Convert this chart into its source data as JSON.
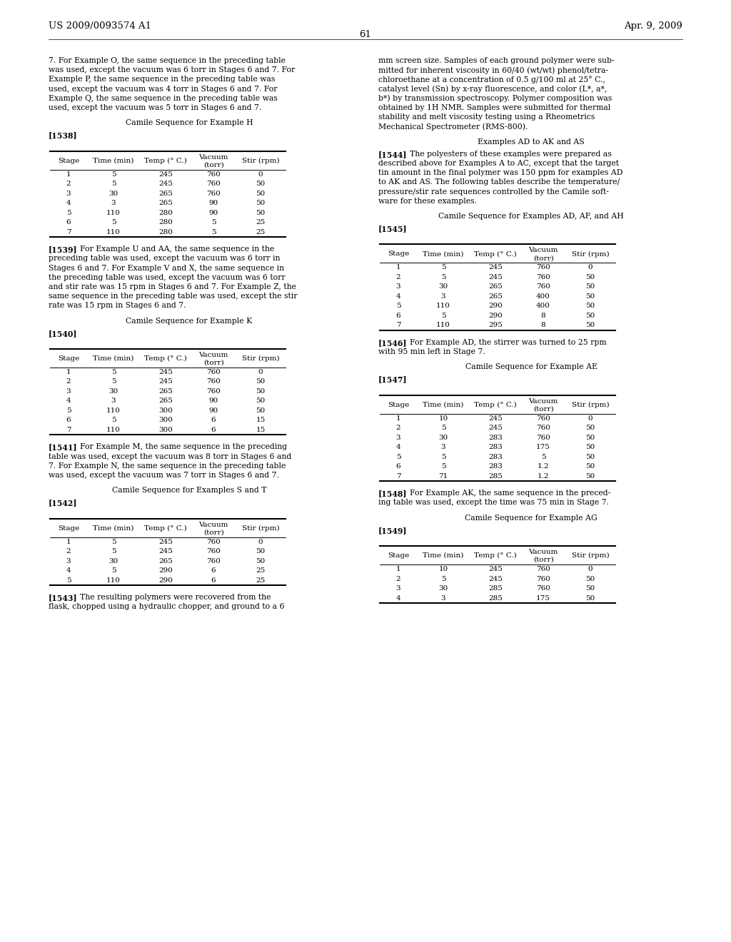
{
  "header_left": "US 2009/0093574 A1",
  "header_right": "Apr. 9, 2009",
  "page_number": "61",
  "bg_color": "#ffffff",
  "left_col": {
    "paragraphs": [
      {
        "type": "body",
        "text": "7. For Example O, the same sequence in the preceding table\nwas used, except the vacuum was 6 torr in Stages 6 and 7. For\nExample P, the same sequence in the preceding table was\nused, except the vacuum was 4 torr in Stages 6 and 7. For\nExample Q, the same sequence in the preceding table was\nused, except the vacuum was 5 torr in Stages 6 and 7."
      },
      {
        "type": "center",
        "text": "Camile Sequence for Example H"
      },
      {
        "type": "bold_bracket",
        "text": "[1538]"
      },
      {
        "type": "table",
        "headers": [
          "Stage",
          "Time (min)",
          "Temp (° C.)",
          "Vacuum\n(torr)",
          "Stir (rpm)"
        ],
        "rows": [
          [
            "1",
            "5",
            "245",
            "760",
            "0"
          ],
          [
            "2",
            "5",
            "245",
            "760",
            "50"
          ],
          [
            "3",
            "30",
            "265",
            "760",
            "50"
          ],
          [
            "4",
            "3",
            "265",
            "90",
            "50"
          ],
          [
            "5",
            "110",
            "280",
            "90",
            "50"
          ],
          [
            "6",
            "5",
            "280",
            "5",
            "25"
          ],
          [
            "7",
            "110",
            "280",
            "5",
            "25"
          ]
        ]
      },
      {
        "type": "body_bracket",
        "label": "[1539]",
        "text": "For Example U and AA, the same sequence in the\npreceding table was used, except the vacuum was 6 torr in\nStages 6 and 7. For Example V and X, the same sequence in\nthe preceding table was used, except the vacuum was 6 torr\nand stir rate was 15 rpm in Stages 6 and 7. For Example Z, the\nsame sequence in the preceding table was used, except the stir\nrate was 15 rpm in Stages 6 and 7."
      },
      {
        "type": "center",
        "text": "Camile Sequence for Example K"
      },
      {
        "type": "bold_bracket",
        "text": "[1540]"
      },
      {
        "type": "table",
        "headers": [
          "Stage",
          "Time (min)",
          "Temp (° C.)",
          "Vacuum\n(torr)",
          "Stir (rpm)"
        ],
        "rows": [
          [
            "1",
            "5",
            "245",
            "760",
            "0"
          ],
          [
            "2",
            "5",
            "245",
            "760",
            "50"
          ],
          [
            "3",
            "30",
            "265",
            "760",
            "50"
          ],
          [
            "4",
            "3",
            "265",
            "90",
            "50"
          ],
          [
            "5",
            "110",
            "300",
            "90",
            "50"
          ],
          [
            "6",
            "5",
            "300",
            "6",
            "15"
          ],
          [
            "7",
            "110",
            "300",
            "6",
            "15"
          ]
        ]
      },
      {
        "type": "body_bracket",
        "label": "[1541]",
        "text": "For Example M, the same sequence in the preceding\ntable was used, except the vacuum was 8 torr in Stages 6 and\n7. For Example N, the same sequence in the preceding table\nwas used, except the vacuum was 7 torr in Stages 6 and 7."
      },
      {
        "type": "center",
        "text": "Camile Sequence for Examples S and T"
      },
      {
        "type": "bold_bracket",
        "text": "[1542]"
      },
      {
        "type": "table",
        "headers": [
          "Stage",
          "Time (min)",
          "Temp (° C.)",
          "Vacuum\n(torr)",
          "Stir (rpm)"
        ],
        "rows": [
          [
            "1",
            "5",
            "245",
            "760",
            "0"
          ],
          [
            "2",
            "5",
            "245",
            "760",
            "50"
          ],
          [
            "3",
            "30",
            "265",
            "760",
            "50"
          ],
          [
            "4",
            "5",
            "290",
            "6",
            "25"
          ],
          [
            "5",
            "110",
            "290",
            "6",
            "25"
          ]
        ]
      },
      {
        "type": "body_bracket",
        "label": "[1543]",
        "text": "The resulting polymers were recovered from the\nflask, chopped using a hydraulic chopper, and ground to a 6"
      }
    ]
  },
  "right_col": {
    "paragraphs": [
      {
        "type": "body",
        "text": "mm screen size. Samples of each ground polymer were sub-\nmitted for inherent viscosity in 60/40 (wt/wt) phenol/tetra-\nchloroethane at a concentration of 0.5 g/100 ml at 25° C.,\ncatalyst level (Sn) by x-ray fluorescence, and color (L*, a*,\nb*) by transmission spectroscopy. Polymer composition was\nobtained by 1H NMR. Samples were submitted for thermal\nstability and melt viscosity testing using a Rheometrics\nMechanical Spectrometer (RMS-800)."
      },
      {
        "type": "center",
        "text": "Examples AD to AK and AS"
      },
      {
        "type": "body_bracket",
        "label": "[1544]",
        "text": "The polyesters of these examples were prepared as\ndescribed above for Examples A to AC, except that the target\ntin amount in the final polymer was 150 ppm for examples AD\nto AK and AS. The following tables describe the temperature/\npressure/stir rate sequences controlled by the Camile soft-\nware for these examples."
      },
      {
        "type": "center",
        "text": "Camile Sequence for Examples AD, AF, and AH"
      },
      {
        "type": "bold_bracket",
        "text": "[1545]"
      },
      {
        "type": "table",
        "headers": [
          "Stage",
          "Time (min)",
          "Temp (° C.)",
          "Vacuum\n(torr)",
          "Stir (rpm)"
        ],
        "rows": [
          [
            "1",
            "5",
            "245",
            "760",
            "0"
          ],
          [
            "2",
            "5",
            "245",
            "760",
            "50"
          ],
          [
            "3",
            "30",
            "265",
            "760",
            "50"
          ],
          [
            "4",
            "3",
            "265",
            "400",
            "50"
          ],
          [
            "5",
            "110",
            "290",
            "400",
            "50"
          ],
          [
            "6",
            "5",
            "290",
            "8",
            "50"
          ],
          [
            "7",
            "110",
            "295",
            "8",
            "50"
          ]
        ]
      },
      {
        "type": "body_bracket",
        "label": "[1546]",
        "text": "For Example AD, the stirrer was turned to 25 rpm\nwith 95 min left in Stage 7."
      },
      {
        "type": "center",
        "text": "Camile Sequence for Example AE"
      },
      {
        "type": "bold_bracket",
        "text": "[1547]"
      },
      {
        "type": "table",
        "headers": [
          "Stage",
          "Time (min)",
          "Temp (° C.)",
          "Vacuum\n(torr)",
          "Stir (rpm)"
        ],
        "rows": [
          [
            "1",
            "10",
            "245",
            "760",
            "0"
          ],
          [
            "2",
            "5",
            "245",
            "760",
            "50"
          ],
          [
            "3",
            "30",
            "283",
            "760",
            "50"
          ],
          [
            "4",
            "3",
            "283",
            "175",
            "50"
          ],
          [
            "5",
            "5",
            "283",
            "5",
            "50"
          ],
          [
            "6",
            "5",
            "283",
            "1.2",
            "50"
          ],
          [
            "7",
            "71",
            "285",
            "1.2",
            "50"
          ]
        ]
      },
      {
        "type": "body_bracket",
        "label": "[1548]",
        "text": "For Example AK, the same sequence in the preced-\ning table was used, except the time was 75 min in Stage 7."
      },
      {
        "type": "center",
        "text": "Camile Sequence for Example AG"
      },
      {
        "type": "bold_bracket",
        "text": "[1549]"
      },
      {
        "type": "table",
        "headers": [
          "Stage",
          "Time (min)",
          "Temp (° C.)",
          "Vacuum\n(torr)",
          "Stir (rpm)"
        ],
        "rows": [
          [
            "1",
            "10",
            "245",
            "760",
            "0"
          ],
          [
            "2",
            "5",
            "245",
            "760",
            "50"
          ],
          [
            "3",
            "30",
            "285",
            "760",
            "50"
          ],
          [
            "4",
            "3",
            "285",
            "175",
            "50"
          ]
        ]
      }
    ]
  }
}
